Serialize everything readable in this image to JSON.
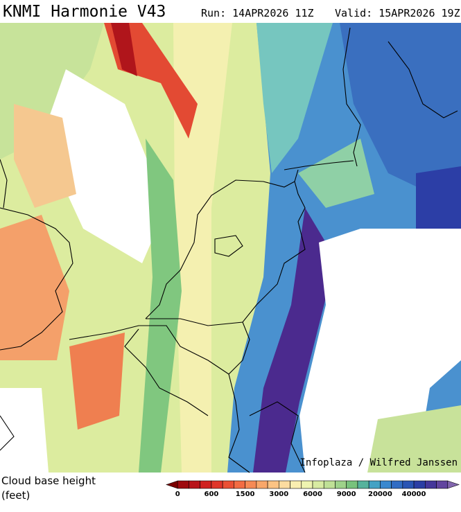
{
  "header": {
    "title": "KNMI Harmonie V43",
    "run": "Run: 14APR2026 11Z",
    "valid": "Valid: 15APR2026 19Z"
  },
  "credit": "Infoplaza / Wilfred Janssen",
  "legend": {
    "label_line1": "Cloud base height",
    "label_line2": "(feet)",
    "colors": [
      "#7a0000",
      "#9e0b0f",
      "#b8141a",
      "#d0211f",
      "#e0352a",
      "#ea5034",
      "#f26c43",
      "#f68a55",
      "#f9a76a",
      "#fbc384",
      "#fcdca0",
      "#f9eeb0",
      "#eef3b0",
      "#d8eba2",
      "#bfe096",
      "#9ed28a",
      "#78c27c",
      "#56b29c",
      "#44a2c4",
      "#3a88cf",
      "#316dc4",
      "#2a55b4",
      "#2b3ea4",
      "#45379a",
      "#62459f",
      "#8266ae"
    ],
    "ticks": [
      0,
      600,
      1500,
      3000,
      6000,
      9000,
      20000,
      40000
    ]
  }
}
